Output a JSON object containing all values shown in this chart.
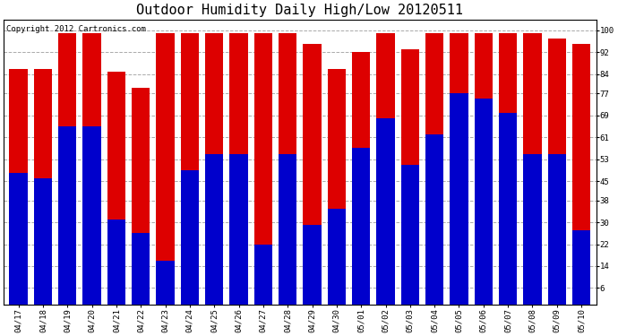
{
  "title": "Outdoor Humidity Daily High/Low 20120511",
  "copyright_text": "Copyright 2012 Cartronics.com",
  "dates": [
    "04/17",
    "04/18",
    "04/19",
    "04/20",
    "04/21",
    "04/22",
    "04/23",
    "04/24",
    "04/25",
    "04/26",
    "04/27",
    "04/28",
    "04/29",
    "04/30",
    "05/01",
    "05/02",
    "05/03",
    "05/04",
    "05/05",
    "05/06",
    "05/07",
    "05/08",
    "05/09",
    "05/10"
  ],
  "high_values": [
    86,
    86,
    99,
    99,
    85,
    79,
    99,
    99,
    99,
    99,
    99,
    99,
    95,
    86,
    92,
    99,
    93,
    99,
    99,
    99,
    99,
    99,
    97,
    95
  ],
  "low_values": [
    48,
    46,
    65,
    65,
    31,
    26,
    16,
    49,
    55,
    55,
    22,
    55,
    29,
    35,
    57,
    68,
    51,
    62,
    77,
    75,
    70,
    55,
    55,
    27
  ],
  "high_color": "#dd0000",
  "low_color": "#0000cc",
  "background_color": "#ffffff",
  "plot_bg_color": "#ffffff",
  "grid_color": "#aaaaaa",
  "yticks": [
    6,
    14,
    22,
    30,
    38,
    45,
    53,
    61,
    69,
    77,
    84,
    92,
    100
  ],
  "ylim": [
    0,
    104
  ],
  "bar_width": 0.75,
  "title_fontsize": 11,
  "tick_fontsize": 6.5,
  "copyright_fontsize": 6.5
}
